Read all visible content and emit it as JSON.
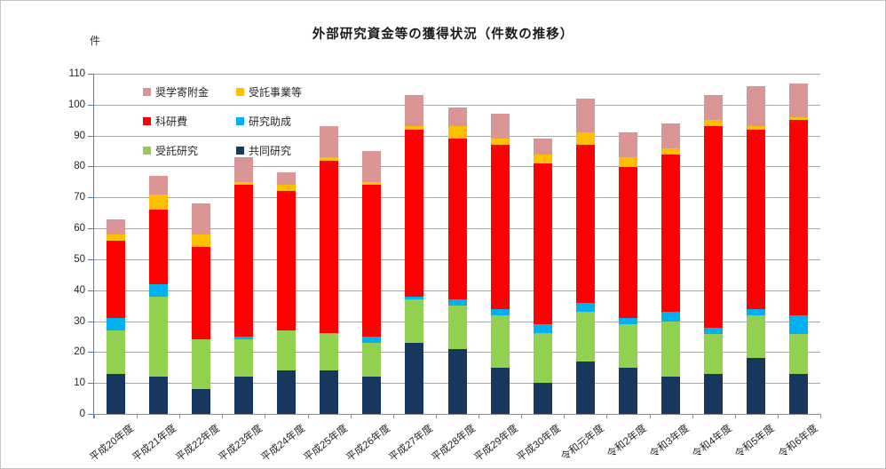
{
  "page": {
    "title": "外部研究資金等の獲得状況（件数の推移）",
    "unit_label": "件"
  },
  "chart_data": {
    "type": "bar",
    "stacked": true,
    "title": "外部研究資金等の獲得状況（件数の推移）",
    "unit": "件",
    "xlabel": "",
    "ylabel": "件",
    "ylim": [
      0,
      110
    ],
    "ytick_step": 10,
    "grid": true,
    "legend_position": "top-left-inside",
    "axis_color": "#4f81bd",
    "grid_color": "#a6a6a6",
    "categories": [
      "平成20年度",
      "平成21年度",
      "平成22年度",
      "平成23年度",
      "平成24年度",
      "平成25年度",
      "平成26年度",
      "平成27年度",
      "平成28年度",
      "平成29年度",
      "平成30年度",
      "令和元年度",
      "令和2年度",
      "令和3年度",
      "令和4年度",
      "令和5年度",
      "令和6年度"
    ],
    "series": [
      {
        "name": "共同研究",
        "color": "#17375e",
        "values": [
          13,
          12,
          8,
          12,
          14,
          14,
          12,
          23,
          21,
          15,
          10,
          17,
          15,
          12,
          13,
          18,
          13
        ]
      },
      {
        "name": "受託研究",
        "color": "#92d050",
        "values": [
          14,
          26,
          16,
          12,
          13,
          12,
          11,
          14,
          14,
          17,
          16,
          16,
          14,
          18,
          13,
          14,
          13
        ]
      },
      {
        "name": "研究助成",
        "color": "#00b0f0",
        "values": [
          4,
          4,
          0,
          1,
          0,
          0,
          2,
          1,
          2,
          2,
          3,
          3,
          2,
          3,
          2,
          2,
          6
        ]
      },
      {
        "name": "科研費",
        "color": "#ff0000",
        "values": [
          25,
          24,
          30,
          49,
          45,
          56,
          49,
          54,
          52,
          53,
          52,
          51,
          49,
          51,
          65,
          58,
          63
        ]
      },
      {
        "name": "受託事業等",
        "color": "#ffc000",
        "values": [
          2,
          5,
          4,
          1,
          2,
          1,
          1,
          1,
          4,
          2,
          3,
          4,
          3,
          2,
          2,
          1,
          1
        ]
      },
      {
        "name": "奨学寄附金",
        "color": "#d99694",
        "values": [
          5,
          6,
          10,
          8,
          4,
          10,
          10,
          10,
          6,
          8,
          5,
          11,
          8,
          8,
          8,
          13,
          11
        ]
      }
    ],
    "totals": [
      63,
      77,
      68,
      83,
      78,
      93,
      85,
      103,
      99,
      97,
      89,
      102,
      91,
      94,
      103,
      106,
      107
    ],
    "legend_order": [
      "奨学寄附金",
      "受託事業等",
      "科研費",
      "研究助成",
      "受託研究",
      "共同研究"
    ]
  }
}
